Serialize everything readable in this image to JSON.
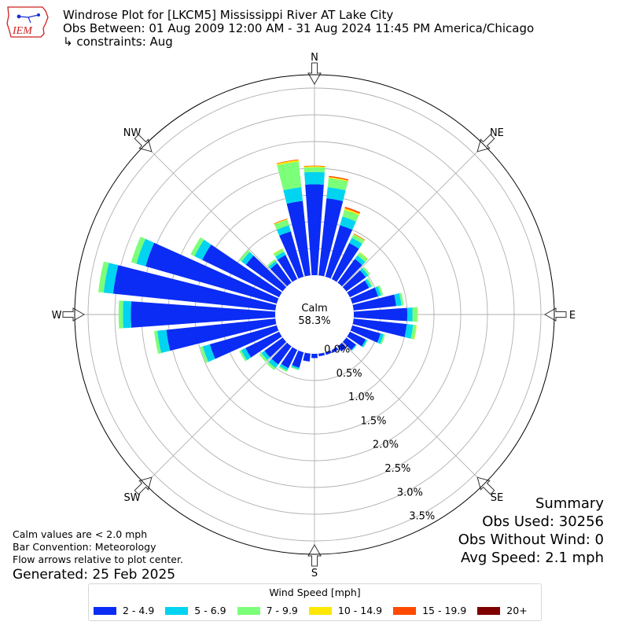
{
  "header": {
    "title": "Windrose Plot for [LKCM5] Mississippi River  AT Lake City",
    "period": "Obs Between: 01 Aug 2009 12:00 AM - 31 Aug 2024 11:45 PM America/Chicago",
    "constraints": "↳ constraints: Aug"
  },
  "logo": {
    "text": "IEM",
    "color": "#cc2222",
    "icon": "iowa-state-outline-logo"
  },
  "calm": {
    "label": "Calm",
    "value": "58.3%"
  },
  "summary": {
    "title": "Summary",
    "obs_used": "Obs Used: 30256",
    "obs_without_wind": "Obs Without Wind: 0",
    "avg_speed": "Avg Speed: 2.1 mph"
  },
  "notes": {
    "calm_def": "Calm values are < 2.0 mph",
    "convention": "Bar Convention: Meteorology",
    "flow": "Flow arrows relative to plot center.",
    "generated": "Generated: 25 Feb 2025"
  },
  "legend": {
    "title": "Wind Speed [mph]",
    "bins": [
      {
        "label": "2 - 4.9",
        "color": "#0a2cf5"
      },
      {
        "label": "5 - 6.9",
        "color": "#00d4f0"
      },
      {
        "label": "7 - 9.9",
        "color": "#7cff79"
      },
      {
        "label": "10 - 14.9",
        "color": "#fee700"
      },
      {
        "label": "15 - 19.9",
        "color": "#ff4a00"
      },
      {
        "label": "20+",
        "color": "#7f0000"
      }
    ]
  },
  "chart_data": {
    "type": "windrose",
    "calm_percent": 58.3,
    "radial_ticks": [
      0.0,
      0.5,
      1.0,
      1.5,
      2.0,
      2.5,
      3.0,
      3.5
    ],
    "radial_tick_labels": [
      "0.0%",
      "0.5%",
      "1.0%",
      "1.5%",
      "2.0%",
      "2.5%",
      "3.0%",
      "3.5%"
    ],
    "rmax": 3.75,
    "direction_labels": [
      "N",
      "NE",
      "E",
      "SE",
      "S",
      "SW",
      "W",
      "NW"
    ],
    "direction_angles": [
      0,
      45,
      90,
      135,
      180,
      225,
      270,
      315
    ],
    "directions": [
      0,
      10,
      20,
      30,
      40,
      50,
      60,
      70,
      80,
      90,
      100,
      110,
      120,
      130,
      140,
      150,
      160,
      170,
      180,
      190,
      200,
      210,
      220,
      230,
      240,
      250,
      260,
      270,
      280,
      290,
      300,
      310,
      320,
      330,
      340,
      350
    ],
    "series": [
      {
        "name": "2 - 4.9",
        "values": [
          1.7,
          1.45,
          1.0,
          0.75,
          0.55,
          0.45,
          0.4,
          0.5,
          0.8,
          1.0,
          1.0,
          0.55,
          0.33,
          0.22,
          0.12,
          0.06,
          0.05,
          0.05,
          0.08,
          0.15,
          0.3,
          0.38,
          0.42,
          0.42,
          0.7,
          1.3,
          2.05,
          2.7,
          3.05,
          2.55,
          1.6,
          0.85,
          0.45,
          0.5,
          0.88,
          1.4
        ]
      },
      {
        "name": "5 - 6.9",
        "values": [
          0.23,
          0.21,
          0.17,
          0.11,
          0.08,
          0.06,
          0.05,
          0.06,
          0.1,
          0.1,
          0.12,
          0.06,
          0.03,
          0.02,
          0.0,
          0.0,
          0.0,
          0.0,
          0.0,
          0.0,
          0.03,
          0.05,
          0.08,
          0.07,
          0.09,
          0.14,
          0.17,
          0.15,
          0.18,
          0.18,
          0.16,
          0.1,
          0.05,
          0.07,
          0.12,
          0.26
        ]
      },
      {
        "name": "7 - 9.9",
        "values": [
          0.09,
          0.17,
          0.13,
          0.07,
          0.07,
          0.04,
          0.03,
          0.04,
          0.04,
          0.09,
          0.06,
          0.03,
          0.01,
          0.0,
          0.0,
          0.0,
          0.0,
          0.0,
          0.0,
          0.0,
          0.02,
          0.03,
          0.05,
          0.05,
          0.04,
          0.05,
          0.06,
          0.08,
          0.1,
          0.1,
          0.08,
          0.05,
          0.04,
          0.06,
          0.11,
          0.48
        ]
      },
      {
        "name": "10 - 14.9",
        "values": [
          0.02,
          0.02,
          0.03,
          0.01,
          0.01,
          0.0,
          0.0,
          0.0,
          0.0,
          0.01,
          0.01,
          0.0,
          0.0,
          0.0,
          0.0,
          0.0,
          0.0,
          0.0,
          0.0,
          0.0,
          0.0,
          0.0,
          0.0,
          0.0,
          0.0,
          0.0,
          0.0,
          0.0,
          0.0,
          0.0,
          0.0,
          0.0,
          0.0,
          0.01,
          0.01,
          0.03
        ]
      },
      {
        "name": "15 - 19.9",
        "values": [
          0.01,
          0.02,
          0.03,
          0.01,
          0.0,
          0.0,
          0.0,
          0.0,
          0.0,
          0.0,
          0.0,
          0.0,
          0.0,
          0.0,
          0.0,
          0.0,
          0.0,
          0.0,
          0.0,
          0.0,
          0.0,
          0.0,
          0.0,
          0.0,
          0.0,
          0.0,
          0.0,
          0.0,
          0.0,
          0.0,
          0.0,
          0.0,
          0.0,
          0.0,
          0.01,
          0.01
        ]
      },
      {
        "name": "20+",
        "values": [
          0,
          0,
          0,
          0,
          0,
          0,
          0,
          0,
          0,
          0,
          0,
          0,
          0,
          0,
          0,
          0,
          0,
          0,
          0,
          0,
          0,
          0,
          0,
          0,
          0,
          0,
          0,
          0,
          0,
          0,
          0,
          0,
          0,
          0,
          0,
          0
        ]
      }
    ]
  }
}
